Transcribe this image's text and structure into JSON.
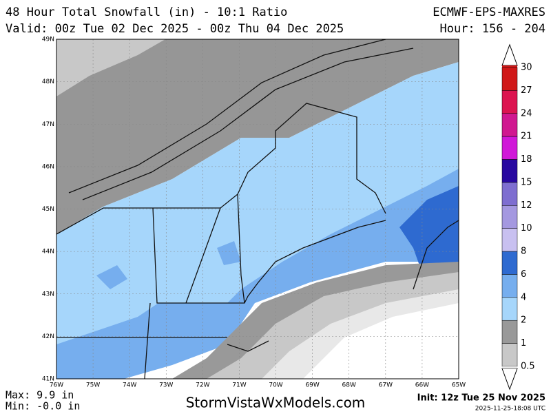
{
  "header": {
    "title": "48 Hour Total Snowfall (in) - 10:1 Ratio",
    "model": "ECMWF-EPS-MAXRES",
    "valid": "Valid: 00z Tue 02 Dec 2025 - 00z Thu 04 Dec 2025",
    "hour": "Hour: 156 - 204"
  },
  "map": {
    "lat_labels": [
      "49N",
      "48N",
      "47N",
      "46N",
      "45N",
      "44N",
      "43N",
      "42N",
      "41N"
    ],
    "lon_labels": [
      "76W",
      "75W",
      "74W",
      "73W",
      "72W",
      "71W",
      "70W",
      "69W",
      "68W",
      "67W",
      "66W",
      "65W"
    ]
  },
  "colorbar": {
    "labels": [
      "30",
      "27",
      "24",
      "21",
      "18",
      "15",
      "12",
      "10",
      "8",
      "6",
      "4",
      "2",
      "1",
      "0.5"
    ],
    "colors": [
      "#d01818",
      "#dc1450",
      "#d01890",
      "#d018d8",
      "#2808a0",
      "#7e6ed0",
      "#a498e0",
      "#c8c0f0",
      "#2e6ad0",
      "#76aeee",
      "#a6d6fb",
      "#999999",
      "#c8c8c8"
    ]
  },
  "footer": {
    "max": "Max: 9.9 in",
    "min": "Min: -0.0 in",
    "site": "StormVistaWxModels.com",
    "init": "Init: 12z Tue 25 Nov 2025",
    "timestamp": "2025-11-25-18:08 UTC"
  }
}
